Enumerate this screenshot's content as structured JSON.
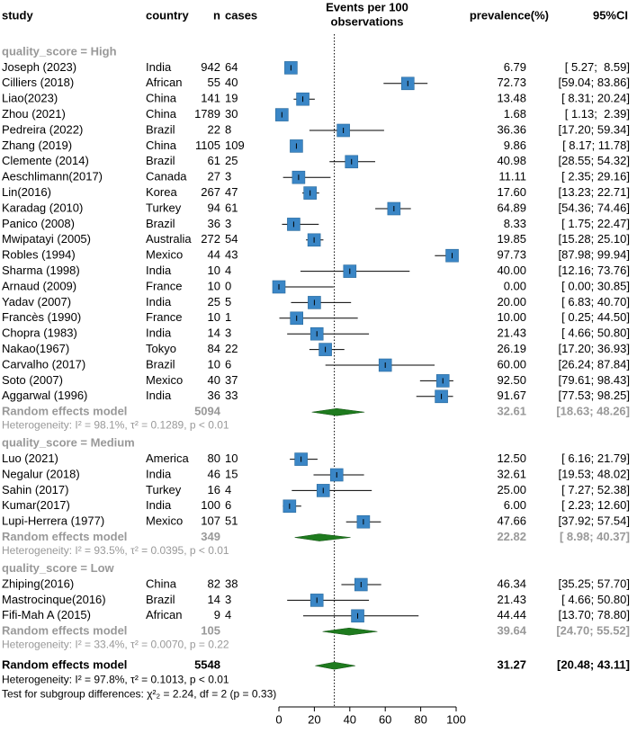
{
  "chart_data": {
    "type": "forest",
    "columns": {
      "study": "study",
      "country": "country",
      "n": "n",
      "cases": "cases",
      "axis_title": [
        "Events per 100",
        "observations"
      ],
      "prevalence": "prevalence(%)",
      "ci": "95%CI"
    },
    "xlim": [
      0,
      100
    ],
    "xticks": [
      0,
      20,
      40,
      60,
      80,
      100
    ],
    "groups": [
      {
        "label": "quality_score = High",
        "studies": [
          {
            "study": "Joseph (2023)",
            "country": "India",
            "n": 942,
            "cases": 64,
            "value": 6.79,
            "value_label": "6.79",
            "ci": [
              5.27,
              8.59
            ],
            "ci_label": "[ 5.27;  8.59]"
          },
          {
            "study": "Cilliers (2018)",
            "country": "African",
            "n": 55,
            "cases": 40,
            "value": 72.73,
            "value_label": "72.73",
            "ci": [
              59.04,
              83.86
            ],
            "ci_label": "[59.04; 83.86]"
          },
          {
            "study": "Liao(2023)",
            "country": "China",
            "n": 141,
            "cases": 19,
            "value": 13.48,
            "value_label": "13.48",
            "ci": [
              8.31,
              20.24
            ],
            "ci_label": "[ 8.31; 20.24]"
          },
          {
            "study": "Zhou (2021)",
            "country": "China",
            "n": 1789,
            "cases": 30,
            "value": 1.68,
            "value_label": "1.68",
            "ci": [
              1.13,
              2.39
            ],
            "ci_label": "[ 1.13;  2.39]"
          },
          {
            "study": "Pedreira (2022)",
            "country": "Brazil",
            "n": 22,
            "cases": 8,
            "value": 36.36,
            "value_label": "36.36",
            "ci": [
              17.2,
              59.34
            ],
            "ci_label": "[17.20; 59.34]"
          },
          {
            "study": "Zhang (2019)",
            "country": "China",
            "n": 1105,
            "cases": 109,
            "value": 9.86,
            "value_label": "9.86",
            "ci": [
              8.17,
              11.78
            ],
            "ci_label": "[ 8.17; 11.78]"
          },
          {
            "study": "Clemente (2014)",
            "country": "Brazil",
            "n": 61,
            "cases": 25,
            "value": 40.98,
            "value_label": "40.98",
            "ci": [
              28.55,
              54.32
            ],
            "ci_label": "[28.55; 54.32]"
          },
          {
            "study": "Aeschlimann(2017)",
            "country": "Canada",
            "n": 27,
            "cases": 3,
            "value": 11.11,
            "value_label": "11.11",
            "ci": [
              2.35,
              29.16
            ],
            "ci_label": "[ 2.35; 29.16]"
          },
          {
            "study": "Lin(2016)",
            "country": "Korea",
            "n": 267,
            "cases": 47,
            "value": 17.6,
            "value_label": "17.60",
            "ci": [
              13.23,
              22.71
            ],
            "ci_label": "[13.23; 22.71]"
          },
          {
            "study": "Karadag (2010)",
            "country": "Turkey",
            "n": 94,
            "cases": 61,
            "value": 64.89,
            "value_label": "64.89",
            "ci": [
              54.36,
              74.46
            ],
            "ci_label": "[54.36; 74.46]"
          },
          {
            "study": "Panico (2008)",
            "country": "Brazil",
            "n": 36,
            "cases": 3,
            "value": 8.33,
            "value_label": "8.33",
            "ci": [
              1.75,
              22.47
            ],
            "ci_label": "[ 1.75; 22.47]"
          },
          {
            "study": "Mwipatayi (2005)",
            "country": "Australia",
            "n": 272,
            "cases": 54,
            "value": 19.85,
            "value_label": "19.85",
            "ci": [
              15.28,
              25.1
            ],
            "ci_label": "[15.28; 25.10]"
          },
          {
            "study": "Robles (1994)",
            "country": "Mexico",
            "n": 44,
            "cases": 43,
            "value": 97.73,
            "value_label": "97.73",
            "ci": [
              87.98,
              99.94
            ],
            "ci_label": "[87.98; 99.94]"
          },
          {
            "study": "Sharma (1998)",
            "country": "India",
            "n": 10,
            "cases": 4,
            "value": 40,
            "value_label": "40.00",
            "ci": [
              12.16,
              73.76
            ],
            "ci_label": "[12.16; 73.76]"
          },
          {
            "study": "Arnaud (2009)",
            "country": "France",
            "n": 10,
            "cases": 0,
            "value": 0,
            "value_label": "0.00",
            "ci": [
              0,
              30.85
            ],
            "ci_label": "[ 0.00; 30.85]"
          },
          {
            "study": "Yadav (2007)",
            "country": "India",
            "n": 25,
            "cases": 5,
            "value": 20,
            "value_label": "20.00",
            "ci": [
              6.83,
              40.7
            ],
            "ci_label": "[ 6.83; 40.70]"
          },
          {
            "study": "Francès (1990)",
            "country": "France",
            "n": 10,
            "cases": 1,
            "value": 10,
            "value_label": "10.00",
            "ci": [
              0.25,
              44.5
            ],
            "ci_label": "[ 0.25; 44.50]"
          },
          {
            "study": "Chopra (1983)",
            "country": "India",
            "n": 14,
            "cases": 3,
            "value": 21.43,
            "value_label": "21.43",
            "ci": [
              4.66,
              50.8
            ],
            "ci_label": "[ 4.66; 50.80]"
          },
          {
            "study": "Nakao(1967)",
            "country": "Tokyo",
            "n": 84,
            "cases": 22,
            "value": 26.19,
            "value_label": "26.19",
            "ci": [
              17.2,
              36.93
            ],
            "ci_label": "[17.20; 36.93]"
          },
          {
            "study": "Carvalho (2017)",
            "country": "Brazil",
            "n": 10,
            "cases": 6,
            "value": 60,
            "value_label": "60.00",
            "ci": [
              26.24,
              87.84
            ],
            "ci_label": "[26.24; 87.84]"
          },
          {
            "study": "Soto (2007)",
            "country": "Mexico",
            "n": 40,
            "cases": 37,
            "value": 92.5,
            "value_label": "92.50",
            "ci": [
              79.61,
              98.43
            ],
            "ci_label": "[79.61; 98.43]"
          },
          {
            "study": "Aggarwal (1996)",
            "country": "India",
            "n": 36,
            "cases": 33,
            "value": 91.67,
            "value_label": "91.67",
            "ci": [
              77.53,
              98.25
            ],
            "ci_label": "[77.53; 98.25]"
          }
        ],
        "summary": {
          "label": "Random effects model",
          "n": 5094,
          "value": 32.61,
          "value_label": "32.61",
          "ci": [
            18.63,
            48.26
          ],
          "ci_label": "[18.63; 48.26]"
        },
        "heterogeneity": "Heterogeneity: I² = 98.1%, τ² = 0.1289, p < 0.01"
      },
      {
        "label": "quality_score = Medium",
        "studies": [
          {
            "study": "Luo (2021)",
            "country": "America",
            "n": 80,
            "cases": 10,
            "value": 12.5,
            "value_label": "12.50",
            "ci": [
              6.16,
              21.79
            ],
            "ci_label": "[ 6.16; 21.79]"
          },
          {
            "study": "Negalur (2018)",
            "country": "India",
            "n": 46,
            "cases": 15,
            "value": 32.61,
            "value_label": "32.61",
            "ci": [
              19.53,
              48.02
            ],
            "ci_label": "[19.53; 48.02]"
          },
          {
            "study": "Sahin (2017)",
            "country": "Turkey",
            "n": 16,
            "cases": 4,
            "value": 25,
            "value_label": "25.00",
            "ci": [
              7.27,
              52.38
            ],
            "ci_label": "[ 7.27; 52.38]"
          },
          {
            "study": "Kumar(2017)",
            "country": "India",
            "n": 100,
            "cases": 6,
            "value": 6,
            "value_label": "6.00",
            "ci": [
              2.23,
              12.6
            ],
            "ci_label": "[ 2.23; 12.60]"
          },
          {
            "study": "Lupi-Herrera (1977)",
            "country": "Mexico",
            "n": 107,
            "cases": 51,
            "value": 47.66,
            "value_label": "47.66",
            "ci": [
              37.92,
              57.54
            ],
            "ci_label": "[37.92; 57.54]"
          }
        ],
        "summary": {
          "label": "Random effects model",
          "n": 349,
          "value": 22.82,
          "value_label": "22.82",
          "ci": [
            8.98,
            40.37
          ],
          "ci_label": "[ 8.98; 40.37]"
        },
        "heterogeneity": "Heterogeneity: I² = 93.5%, τ² = 0.0395, p < 0.01"
      },
      {
        "label": "quality_score = Low",
        "studies": [
          {
            "study": "Zhiping(2016)",
            "country": "China",
            "n": 82,
            "cases": 38,
            "value": 46.34,
            "value_label": "46.34",
            "ci": [
              35.25,
              57.7
            ],
            "ci_label": "[35.25; 57.70]"
          },
          {
            "study": "Mastrocinque(2016)",
            "country": "Brazil",
            "n": 14,
            "cases": 3,
            "value": 21.43,
            "value_label": "21.43",
            "ci": [
              4.66,
              50.8
            ],
            "ci_label": "[ 4.66; 50.80]"
          },
          {
            "study": "Fifi-Mah A (2015)",
            "country": "African",
            "n": 9,
            "cases": 4,
            "value": 44.44,
            "value_label": "44.44",
            "ci": [
              13.7,
              78.8
            ],
            "ci_label": "[13.70; 78.80]"
          }
        ],
        "summary": {
          "label": "Random effects model",
          "n": 105,
          "value": 39.64,
          "value_label": "39.64",
          "ci": [
            24.7,
            55.52
          ],
          "ci_label": "[24.70; 55.52]"
        },
        "heterogeneity": "Heterogeneity: I² = 33.4%, τ² = 0.0070, p = 0.22"
      }
    ],
    "overall": {
      "label": "Random effects model",
      "n": 5548,
      "value": 31.27,
      "value_label": "31.27",
      "ci": [
        20.48,
        43.11
      ],
      "ci_label": "[20.48; 43.11]",
      "heterogeneity": "Heterogeneity: I² = 97.8%, τ² = 0.1013, p < 0.01"
    },
    "subgroup_test": "Test for subgroup differences: χ²₂ = 2.24, df = 2 (p = 0.33)",
    "square_color": "#3a86c6",
    "diamond_color": "#1e7b1e"
  }
}
